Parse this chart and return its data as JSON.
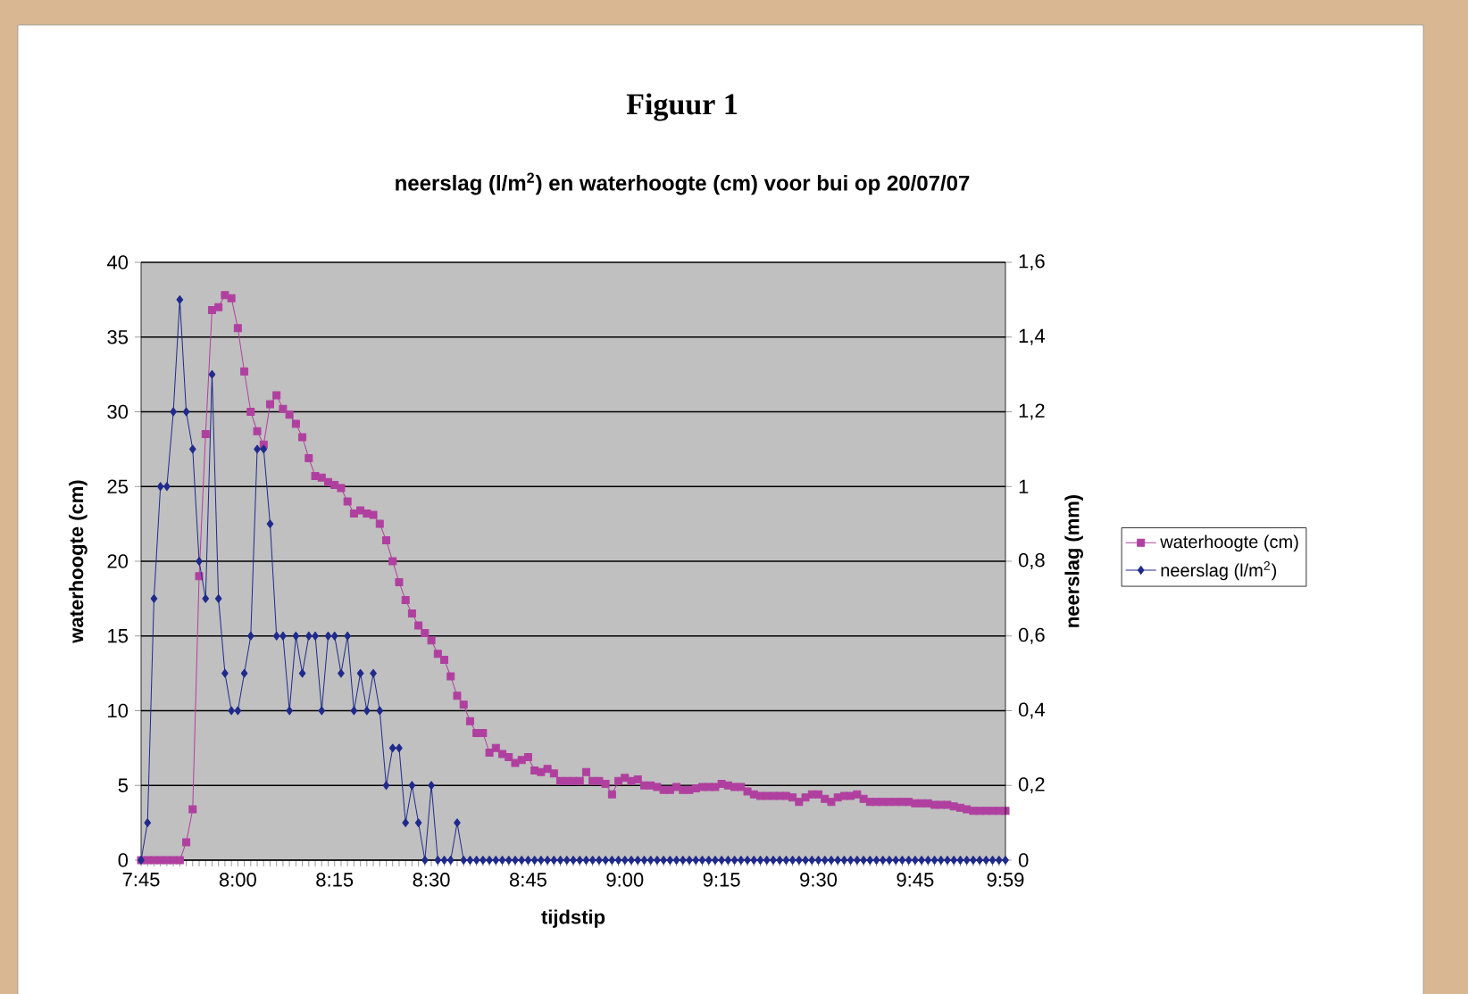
{
  "chart_data": {
    "type": "line",
    "title": "Figuur 1",
    "subtitle": "neerslag (l/m$^{2}$) en waterhoogte (cm) voor bui op 20/07/07",
    "xlabel": "tijdstip",
    "ylabel": "waterhoogte (cm)",
    "y2label": "neerslag (mm)",
    "categories": [
      "7:45",
      null,
      null,
      null,
      null,
      null,
      null,
      null,
      null,
      null,
      null,
      null,
      null,
      null,
      null,
      "8:00",
      null,
      null,
      null,
      null,
      null,
      null,
      null,
      null,
      null,
      null,
      null,
      null,
      null,
      null,
      "8:15",
      null,
      null,
      null,
      null,
      null,
      null,
      null,
      null,
      null,
      null,
      null,
      null,
      null,
      null,
      "8:30",
      null,
      null,
      null,
      null,
      null,
      null,
      null,
      null,
      null,
      null,
      null,
      null,
      null,
      null,
      "8:45",
      null,
      null,
      null,
      null,
      null,
      null,
      null,
      null,
      null,
      null,
      null,
      null,
      null,
      null,
      "9:00",
      null,
      null,
      null,
      null,
      null,
      null,
      null,
      null,
      null,
      null,
      null,
      null,
      null,
      null,
      "9:15",
      null,
      null,
      null,
      null,
      null,
      null,
      null,
      null,
      null,
      null,
      null,
      null,
      null,
      null,
      "9:30",
      null,
      null,
      null,
      null,
      null,
      null,
      null,
      null,
      null,
      null,
      null,
      null,
      null,
      null,
      "9:45",
      null,
      null,
      null,
      null,
      null,
      null,
      null,
      null,
      null,
      null,
      null,
      null,
      null,
      "9:59"
    ],
    "ylim": [
      0,
      40
    ],
    "yticks": [
      0,
      5,
      10,
      15,
      20,
      25,
      30,
      35,
      40
    ],
    "y2lim": [
      0,
      1.6
    ],
    "y2ticks": [
      0,
      {
        "value": 0.2,
        "label": "0,2"
      },
      {
        "value": 0.4,
        "label": "0,4"
      },
      {
        "value": 0.6,
        "label": "0,6"
      },
      {
        "value": 0.8,
        "label": "0,8"
      },
      1,
      {
        "value": 1.2,
        "label": "1,2"
      },
      {
        "value": 1.4,
        "label": "1,4"
      },
      {
        "value": 1.6,
        "label": "1,6"
      }
    ],
    "grid": "y",
    "legend": "right",
    "line_style": "solid",
    "series": [
      {
        "name": "waterhoogte (cm)",
        "color": "#b0409f",
        "marker": "square",
        "values": [
          0,
          0,
          0,
          0,
          0,
          0,
          0,
          1.2,
          3.4,
          19.0,
          28.5,
          36.8,
          37.0,
          37.8,
          37.6,
          35.6,
          32.7,
          30.0,
          28.7,
          27.8,
          30.5,
          31.1,
          30.2,
          29.8,
          29.2,
          28.3,
          26.9,
          25.7,
          25.6,
          25.3,
          25.1,
          24.9,
          24.0,
          23.2,
          23.4,
          23.2,
          23.1,
          22.5,
          21.4,
          20.0,
          18.6,
          17.4,
          16.5,
          15.7,
          15.2,
          14.7,
          13.8,
          13.4,
          12.3,
          11.0,
          10.4,
          9.3,
          8.5,
          8.5,
          7.2,
          7.5,
          7.1,
          6.9,
          6.5,
          6.7,
          6.9,
          6.0,
          5.9,
          6.1,
          5.8,
          5.3,
          5.3,
          5.3,
          5.3,
          5.9,
          5.3,
          5.3,
          5.1,
          4.4,
          5.3,
          5.5,
          5.3,
          5.4,
          5.0,
          5.0,
          4.9,
          4.7,
          4.7,
          4.9,
          4.7,
          4.7,
          4.8,
          4.9,
          4.9,
          4.9,
          5.1,
          5.0,
          4.9,
          4.9,
          4.6,
          4.4,
          4.3,
          4.3,
          4.3,
          4.3,
          4.3,
          4.2,
          3.9,
          4.2,
          4.4,
          4.4,
          4.1,
          3.9,
          4.2,
          4.3,
          4.3,
          4.4,
          4.1,
          3.9,
          3.9,
          3.9,
          3.9,
          3.9,
          3.9,
          3.9,
          3.8,
          3.8,
          3.8,
          3.7,
          3.7,
          3.7,
          3.6,
          3.5,
          3.4,
          3.3,
          3.3,
          3.3,
          3.3,
          3.3,
          3.3
        ]
      },
      {
        "name": "neerslag (l/m$^{2}$)",
        "color": "#1f2a8c",
        "marker": "diamond",
        "axis": "y2",
        "values": [
          0,
          0.1,
          0.7,
          1.0,
          1.0,
          1.2,
          1.5,
          1.2,
          1.1,
          0.8,
          0.7,
          1.3,
          0.7,
          0.5,
          0.4,
          0.4,
          0.5,
          0.6,
          1.1,
          1.1,
          0.9,
          0.6,
          0.6,
          0.4,
          0.6,
          0.5,
          0.6,
          0.6,
          0.4,
          0.6,
          0.6,
          0.5,
          0.6,
          0.4,
          0.5,
          0.4,
          0.5,
          0.4,
          0.2,
          0.3,
          0.3,
          0.1,
          0.2,
          0.1,
          0,
          0.2,
          0,
          0,
          0,
          0.1,
          0,
          0,
          0,
          0,
          0,
          0,
          0,
          0,
          0,
          0,
          0,
          0,
          0,
          0,
          0,
          0,
          0,
          0,
          0,
          0,
          0,
          0,
          0,
          0,
          0,
          0,
          0,
          0,
          0,
          0,
          0,
          0,
          0,
          0,
          0,
          0,
          0,
          0,
          0,
          0,
          0,
          0,
          0,
          0,
          0,
          0,
          0,
          0,
          0,
          0,
          0,
          0,
          0,
          0,
          0,
          0,
          0,
          0,
          0,
          0,
          0,
          0,
          0,
          0,
          0,
          0,
          0,
          0,
          0,
          0,
          0,
          0,
          0,
          0,
          0,
          0,
          0,
          0,
          0,
          0,
          0,
          0,
          0,
          0,
          0
        ]
      }
    ]
  }
}
